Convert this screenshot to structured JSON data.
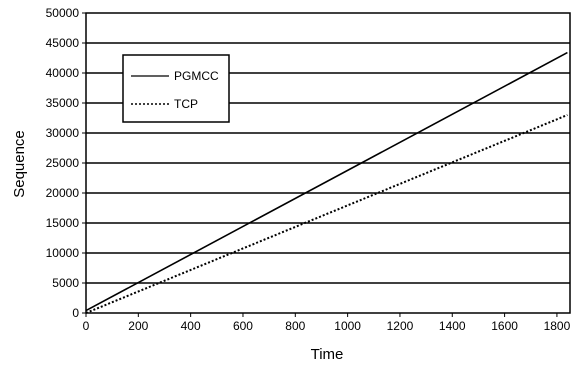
{
  "chart_data": {
    "type": "line",
    "xlabel": "Time",
    "ylabel": "Sequence",
    "xlim": [
      0,
      1850
    ],
    "ylim": [
      0,
      50000
    ],
    "x_ticks": [
      0,
      200,
      400,
      600,
      800,
      1000,
      1200,
      1400,
      1600,
      1800
    ],
    "y_ticks": [
      0,
      5000,
      10000,
      15000,
      20000,
      25000,
      30000,
      35000,
      40000,
      45000,
      50000
    ],
    "grid": "horizontal",
    "legend_position": "top-left",
    "series": [
      {
        "name": "PGMCC",
        "style": "solid",
        "color": "#000000",
        "x": [
          0,
          1840
        ],
        "y": [
          400,
          43400
        ]
      },
      {
        "name": "TCP",
        "style": "dotted",
        "color": "#000000",
        "x": [
          0,
          1840
        ],
        "y": [
          0,
          33000
        ]
      }
    ]
  }
}
